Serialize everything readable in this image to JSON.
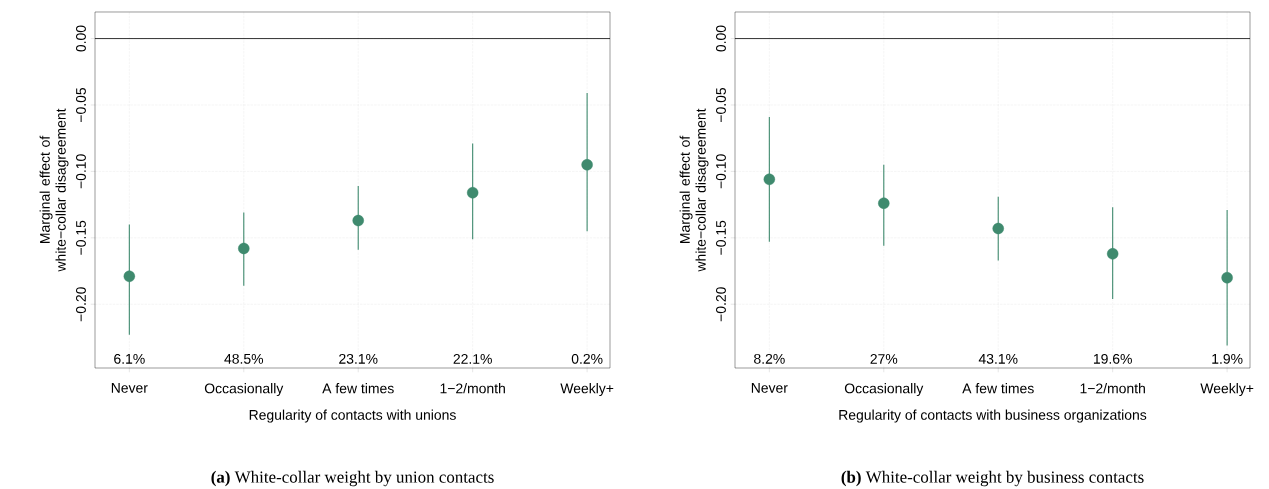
{
  "chart_data": [
    {
      "type": "scatter",
      "xlabel": "Regularity of contacts with unions",
      "ylabel": "Marginal effect of white−collar disagreement",
      "categories": [
        "Never",
        "Occasionally",
        "A few times",
        "1−2/month",
        "Weekly+"
      ],
      "series": [
        {
          "color": "#3f8a6e",
          "values": [
            -0.179,
            -0.158,
            -0.137,
            -0.116,
            -0.095
          ],
          "errors": [
            [
              -0.223,
              -0.14
            ],
            [
              -0.186,
              -0.131
            ],
            [
              -0.159,
              -0.111
            ],
            [
              -0.151,
              -0.079
            ],
            [
              -0.145,
              -0.041
            ]
          ]
        }
      ],
      "grid": true,
      "ylim": [
        -0.248,
        0.02
      ],
      "yticks": [
        {
          "value": -0.2,
          "label": "−0.20"
        },
        {
          "value": -0.15,
          "label": "−0.15"
        },
        {
          "value": -0.1,
          "label": "−0.10"
        },
        {
          "value": -0.05,
          "label": "−0.05"
        },
        {
          "value": 0,
          "label": "0.00"
        }
      ],
      "ref_lines": [
        {
          "axis": "y",
          "value": 0,
          "color": "#000000"
        }
      ],
      "annotations": [
        "6.1%",
        "48.5%",
        "23.1%",
        "22.1%",
        "0.2%",
        "**(a)** White-collar weight by union contacts"
      ]
    },
    {
      "type": "scatter",
      "xlabel": "Regularity of contacts with business organizations",
      "ylabel": "Marginal effect of white−collar disagreement",
      "categories": [
        "Never",
        "Occasionally",
        "A few times",
        "1−2/month",
        "Weekly+"
      ],
      "series": [
        {
          "color": "#3f8a6e",
          "values": [
            -0.106,
            -0.124,
            -0.143,
            -0.162,
            -0.18
          ],
          "errors": [
            [
              -0.153,
              -0.059
            ],
            [
              -0.156,
              -0.095
            ],
            [
              -0.167,
              -0.119
            ],
            [
              -0.196,
              -0.127
            ],
            [
              -0.231,
              -0.129
            ]
          ]
        }
      ],
      "grid": true,
      "ylim": [
        -0.248,
        0.02
      ],
      "yticks": [
        {
          "value": -0.2,
          "label": "−0.20"
        },
        {
          "value": -0.15,
          "label": "−0.15"
        },
        {
          "value": -0.1,
          "label": "−0.10"
        },
        {
          "value": -0.05,
          "label": "−0.05"
        },
        {
          "value": 0,
          "label": "0.00"
        }
      ],
      "ref_lines": [
        {
          "axis": "y",
          "value": 0,
          "color": "#000000"
        }
      ],
      "annotations": [
        "8.2%",
        "27%",
        "43.1%",
        "19.6%",
        "1.9%",
        "**(b)** White-collar weight by business contacts"
      ]
    }
  ]
}
